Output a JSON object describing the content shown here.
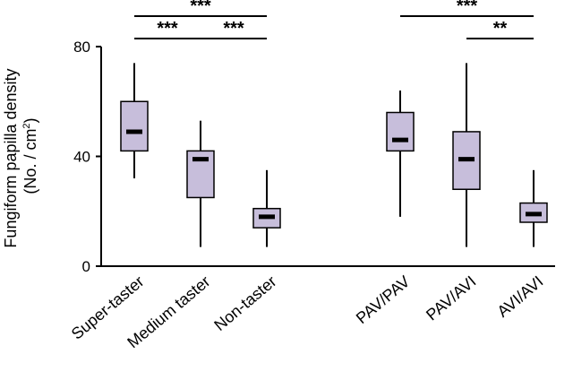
{
  "chart_data": {
    "type": "box",
    "ylabel_line1": "Fungiform papilla density",
    "ylabel_line2": "(No. / cm",
    "ylabel_sup": "2",
    "ylabel_line2_end": ")",
    "ylim": [
      0,
      80
    ],
    "yticks": [
      "0",
      "40",
      "80"
    ],
    "box_color": "#c7bedb",
    "groups": [
      {
        "categories": [
          "Super-taster",
          "Medium taster",
          "Non-taster"
        ],
        "boxes": [
          {
            "min": 32,
            "q1": 42,
            "median": 49,
            "q3": 60,
            "max": 74
          },
          {
            "min": 7,
            "q1": 25,
            "median": 39,
            "q3": 42,
            "max": 53
          },
          {
            "min": 7,
            "q1": 14,
            "median": 18,
            "q3": 21,
            "max": 35
          }
        ]
      },
      {
        "categories": [
          "PAV/PAV",
          "PAV/AVI",
          "AVI/AVI"
        ],
        "boxes": [
          {
            "min": 18,
            "q1": 42,
            "median": 46,
            "q3": 56,
            "max": 64
          },
          {
            "min": 7,
            "q1": 28,
            "median": 39,
            "q3": 49,
            "max": 74
          },
          {
            "min": 7,
            "q1": 16,
            "median": 19,
            "q3": 23,
            "max": 35
          }
        ]
      }
    ],
    "significance": [
      {
        "from": "Super-taster",
        "to": "Non-taster",
        "label": "***",
        "level": 2
      },
      {
        "from": "Super-taster",
        "to": "Medium taster",
        "label": "***",
        "level": 1
      },
      {
        "from": "Medium taster",
        "to": "Non-taster",
        "label": "***",
        "level": 1
      },
      {
        "from": "PAV/PAV",
        "to": "AVI/AVI",
        "label": "***",
        "level": 2
      },
      {
        "from": "PAV/AVI",
        "to": "AVI/AVI",
        "label": "**",
        "level": 1
      }
    ]
  }
}
